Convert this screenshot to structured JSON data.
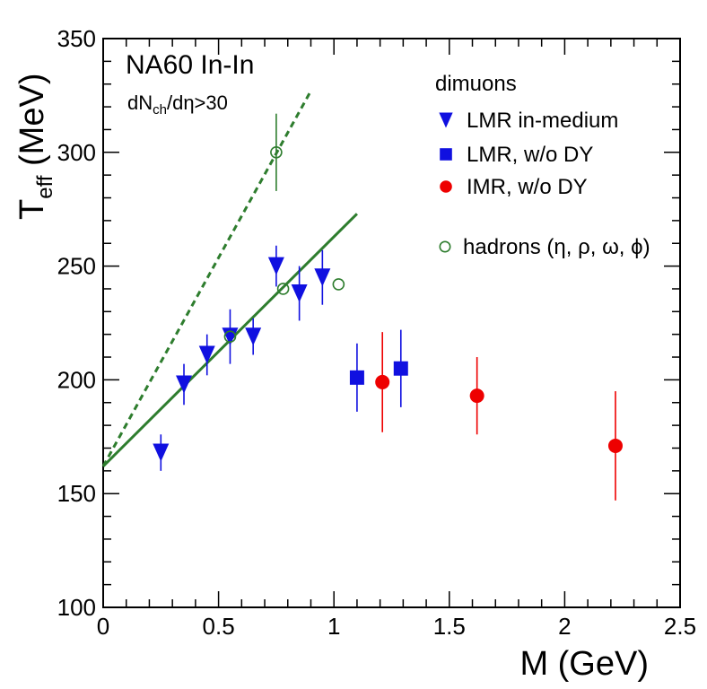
{
  "chart_data": {
    "type": "scatter",
    "title": "NA60 In-In",
    "subtitle": {
      "prefix": "dN",
      "sub": "ch",
      "suffix": "/dη>30"
    },
    "xlabel": "M (GeV)",
    "ylabel": {
      "main": "T",
      "sub": "eff",
      "unit": " (MeV)"
    },
    "xlim": [
      0,
      2.5
    ],
    "ylim": [
      100,
      350
    ],
    "xticks": [
      0,
      0.5,
      1,
      1.5,
      2,
      2.5
    ],
    "xtick_labels": [
      "0",
      "0.5",
      "1",
      "1.5",
      "2",
      "2.5"
    ],
    "yticks": [
      100,
      150,
      200,
      250,
      300,
      350
    ],
    "ytick_labels": [
      "100",
      "150",
      "200",
      "250",
      "300",
      "350"
    ],
    "legend_title": "dimuons",
    "series": [
      {
        "name": "LMR in-medium",
        "marker": "triangle-down",
        "color": "#1010e0",
        "points": [
          {
            "x": 0.25,
            "y": 168,
            "err": 8
          },
          {
            "x": 0.35,
            "y": 198,
            "err": 9
          },
          {
            "x": 0.45,
            "y": 211,
            "err": 9
          },
          {
            "x": 0.55,
            "y": 219,
            "err": 12
          },
          {
            "x": 0.65,
            "y": 219,
            "err": 8
          },
          {
            "x": 0.75,
            "y": 250,
            "err": 9
          },
          {
            "x": 0.85,
            "y": 238,
            "err": 12
          },
          {
            "x": 0.95,
            "y": 245,
            "err": 12
          }
        ]
      },
      {
        "name": "LMR, w/o DY",
        "marker": "square",
        "color": "#1010e0",
        "points": [
          {
            "x": 1.1,
            "y": 201,
            "err": 15
          },
          {
            "x": 1.29,
            "y": 205,
            "err": 17
          }
        ]
      },
      {
        "name": "IMR,  w/o DY",
        "marker": "circle",
        "color": "#ee0000",
        "points": [
          {
            "x": 1.21,
            "y": 199,
            "err": 22
          },
          {
            "x": 1.62,
            "y": 193,
            "err": 17
          },
          {
            "x": 2.22,
            "y": 171,
            "err": 24
          }
        ]
      },
      {
        "name": "hadrons (η, ρ, ω, ϕ)",
        "marker": "open-circle",
        "color": "#2e7d2e",
        "points": [
          {
            "x": 0.55,
            "y": 219,
            "err": 0
          },
          {
            "x": 0.75,
            "y": 300,
            "err": 17
          },
          {
            "x": 0.78,
            "y": 240,
            "err": 0
          },
          {
            "x": 1.02,
            "y": 242,
            "err": 0
          }
        ]
      }
    ],
    "lines": [
      {
        "name": "solid fit",
        "style": "solid",
        "color": "#2e7d2e",
        "x": [
          0.0,
          1.1
        ],
        "y": [
          162,
          273
        ]
      },
      {
        "name": "dashed fit",
        "style": "dashed",
        "color": "#2e7d2e",
        "x": [
          0.0,
          0.9
        ],
        "y": [
          162,
          327
        ]
      }
    ]
  }
}
